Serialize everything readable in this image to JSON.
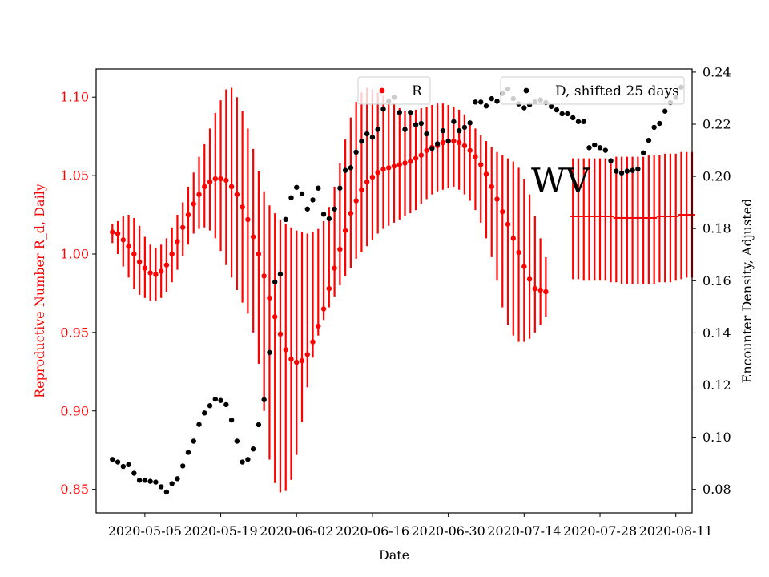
{
  "chart_data": {
    "type": "scatter",
    "title": "",
    "annotation": "WV",
    "xlabel": "Date",
    "ylabel_left": "Reproductive Number R_d, Daily",
    "ylabel_right": "Encounter Density, Adjusted",
    "x_ticks": [
      "2020-05-05",
      "2020-05-19",
      "2020-06-02",
      "2020-06-16",
      "2020-06-30",
      "2020-07-14",
      "2020-07-28",
      "2020-08-11"
    ],
    "x_range": [
      "2020-04-26",
      "2020-08-14"
    ],
    "y_left": {
      "ticks": [
        "0.85",
        "0.90",
        "0.95",
        "1.00",
        "1.05",
        "1.10"
      ],
      "range": [
        0.835,
        1.118
      ]
    },
    "y_right": {
      "ticks": [
        "0.08",
        "0.10",
        "0.12",
        "0.14",
        "0.16",
        "0.18",
        "0.20",
        "0.22",
        "0.24"
      ],
      "range": [
        0.071,
        0.2412
      ]
    },
    "colors": {
      "R": "#ff0000",
      "D": "#000000",
      "left_axis": "#ff0000",
      "right_axis": "#000000"
    },
    "legend": [
      {
        "label": "R",
        "placement": "upper-center"
      },
      {
        "label": "D, shifted 25 days",
        "placement": "upper-right"
      }
    ],
    "series": [
      {
        "name": "R",
        "axis": "left",
        "start_date": "2020-04-29",
        "values": [
          1.014,
          1.013,
          1.009,
          1.005,
          1.0,
          0.995,
          0.991,
          0.988,
          0.987,
          0.989,
          0.993,
          1.0,
          1.008,
          1.017,
          1.025,
          1.032,
          1.038,
          1.043,
          1.046,
          1.048,
          1.048,
          1.047,
          1.043,
          1.038,
          1.03,
          1.022,
          1.011,
          1.0,
          0.986,
          0.972,
          0.96,
          0.949,
          0.939,
          0.933,
          0.931,
          0.932,
          0.936,
          0.944,
          0.954,
          0.965,
          0.978,
          0.991,
          1.003,
          1.015,
          1.026,
          1.034,
          1.041,
          1.046,
          1.049,
          1.052,
          1.054,
          1.055,
          1.056,
          1.057,
          1.058,
          1.059,
          1.061,
          1.063,
          1.066,
          1.068,
          1.069,
          1.071,
          1.072,
          1.072,
          1.071,
          1.069,
          1.066,
          1.062,
          1.057,
          1.051,
          1.043,
          1.035,
          1.027,
          1.019,
          1.01,
          1.001,
          0.992,
          0.984,
          0.978,
          0.977,
          0.976
        ],
        "lower": [
          1.007,
          1.0,
          0.992,
          0.985,
          0.978,
          0.974,
          0.972,
          0.97,
          0.97,
          0.972,
          0.976,
          0.982,
          0.99,
          0.999,
          1.006,
          1.013,
          1.016,
          1.017,
          1.015,
          1.01,
          1.002,
          0.993,
          0.985,
          0.977,
          0.969,
          0.962,
          0.95,
          0.93,
          0.9,
          0.869,
          0.854,
          0.848,
          0.849,
          0.856,
          0.872,
          0.893,
          0.915,
          0.934,
          0.948,
          0.958,
          0.966,
          0.973,
          0.98,
          0.986,
          0.991,
          0.997,
          1.001,
          1.005,
          1.009,
          1.013,
          1.016,
          1.018,
          1.02,
          1.022,
          1.024,
          1.026,
          1.028,
          1.032,
          1.035,
          1.038,
          1.04,
          1.041,
          1.042,
          1.043,
          1.041,
          1.038,
          1.034,
          1.028,
          1.02,
          1.01,
          0.998,
          0.983,
          0.966,
          0.955,
          0.948,
          0.944,
          0.944,
          0.946,
          0.95,
          0.955,
          0.96
        ],
        "upper": [
          1.019,
          1.021,
          1.024,
          1.025,
          1.023,
          1.018,
          1.011,
          1.006,
          1.004,
          1.006,
          1.01,
          1.017,
          1.025,
          1.033,
          1.043,
          1.052,
          1.062,
          1.07,
          1.08,
          1.09,
          1.098,
          1.105,
          1.106,
          1.1,
          1.091,
          1.08,
          1.067,
          1.053,
          1.04,
          1.031,
          1.026,
          1.022,
          1.019,
          1.017,
          1.015,
          1.014,
          1.013,
          1.014,
          1.016,
          1.021,
          1.03,
          1.043,
          1.058,
          1.073,
          1.087,
          1.097,
          1.103,
          1.106,
          1.105,
          1.103,
          1.101,
          1.099,
          1.096,
          1.093,
          1.091,
          1.091,
          1.092,
          1.093,
          1.094,
          1.095,
          1.096,
          1.096,
          1.095,
          1.094,
          1.092,
          1.089,
          1.085,
          1.08,
          1.076,
          1.072,
          1.068,
          1.065,
          1.063,
          1.061,
          1.059,
          1.055,
          1.048,
          1.038,
          1.024,
          1.01,
          0.998
        ]
      },
      {
        "name": "R",
        "axis": "left",
        "start_date": "2020-07-23",
        "values": [
          1.024,
          1.024,
          1.024,
          1.024,
          1.024,
          1.024,
          1.024,
          1.024,
          1.023,
          1.023,
          1.023,
          1.023,
          1.023,
          1.023,
          1.023,
          1.023,
          1.024,
          1.024,
          1.024,
          1.024,
          1.025,
          1.025,
          1.025
        ],
        "lower": [
          0.984,
          0.984,
          0.983,
          0.983,
          0.983,
          0.983,
          0.983,
          0.982,
          0.982,
          0.981,
          0.981,
          0.981,
          0.981,
          0.981,
          0.981,
          0.981,
          0.982,
          0.982,
          0.982,
          0.983,
          0.984,
          0.985,
          0.985
        ],
        "upper": [
          1.061,
          1.061,
          1.061,
          1.061,
          1.061,
          1.061,
          1.061,
          1.061,
          1.062,
          1.062,
          1.062,
          1.062,
          1.062,
          1.062,
          1.063,
          1.063,
          1.063,
          1.064,
          1.064,
          1.064,
          1.065,
          1.065,
          1.065
        ]
      },
      {
        "name": "D, shifted 25 days",
        "axis": "right",
        "points": [
          [
            "2020-04-29",
            0.0915
          ],
          [
            "2020-04-30",
            0.0905
          ],
          [
            "2020-05-01",
            0.0888
          ],
          [
            "2020-05-02",
            0.0895
          ],
          [
            "2020-05-03",
            0.0862
          ],
          [
            "2020-05-04",
            0.0835
          ],
          [
            "2020-05-05",
            0.0835
          ],
          [
            "2020-05-06",
            0.0831
          ],
          [
            "2020-05-07",
            0.0828
          ],
          [
            "2020-05-08",
            0.081
          ],
          [
            "2020-05-09",
            0.079
          ],
          [
            "2020-05-10",
            0.0822
          ],
          [
            "2020-05-11",
            0.0841
          ],
          [
            "2020-05-12",
            0.089
          ],
          [
            "2020-05-13",
            0.0942
          ],
          [
            "2020-05-14",
            0.0985
          ],
          [
            "2020-05-15",
            0.1049
          ],
          [
            "2020-05-16",
            0.1093
          ],
          [
            "2020-05-17",
            0.1121
          ],
          [
            "2020-05-18",
            0.1146
          ],
          [
            "2020-05-19",
            0.1141
          ],
          [
            "2020-05-20",
            0.1125
          ],
          [
            "2020-05-21",
            0.1066
          ],
          [
            "2020-05-22",
            0.0985
          ],
          [
            "2020-05-23",
            0.0905
          ],
          [
            "2020-05-24",
            0.0915
          ],
          [
            "2020-05-25",
            0.0955
          ],
          [
            "2020-05-26",
            0.1048
          ],
          [
            "2020-05-27",
            0.1144
          ],
          [
            "2020-05-28",
            0.1325
          ],
          [
            "2020-05-29",
            0.1595
          ],
          [
            "2020-05-30",
            0.1625
          ],
          [
            "2020-05-31",
            0.1835
          ],
          [
            "2020-06-01",
            0.1918
          ],
          [
            "2020-06-02",
            0.1958
          ],
          [
            "2020-06-03",
            0.1933
          ],
          [
            "2020-06-04",
            0.1875
          ],
          [
            "2020-06-05",
            0.191
          ],
          [
            "2020-06-06",
            0.1955
          ],
          [
            "2020-06-07",
            0.1855
          ],
          [
            "2020-06-08",
            0.1838
          ],
          [
            "2020-06-09",
            0.1875
          ],
          [
            "2020-06-10",
            0.1955
          ],
          [
            "2020-06-11",
            0.2023
          ],
          [
            "2020-06-12",
            0.2033
          ],
          [
            "2020-06-13",
            0.2093
          ],
          [
            "2020-06-14",
            0.2135
          ],
          [
            "2020-06-15",
            0.2163
          ],
          [
            "2020-06-16",
            0.215
          ],
          [
            "2020-06-17",
            0.218
          ],
          [
            "2020-06-18",
            0.2258
          ],
          [
            "2020-06-19",
            0.2288
          ],
          [
            "2020-06-20",
            0.2303
          ],
          [
            "2020-06-21",
            0.2245
          ],
          [
            "2020-06-22",
            0.218
          ],
          [
            "2020-06-23",
            0.2245
          ],
          [
            "2020-06-24",
            0.2198
          ],
          [
            "2020-06-25",
            0.2203
          ],
          [
            "2020-06-26",
            0.2163
          ],
          [
            "2020-06-27",
            0.2107
          ],
          [
            "2020-06-28",
            0.2125
          ],
          [
            "2020-06-29",
            0.2175
          ],
          [
            "2020-06-30",
            0.2135
          ],
          [
            "2020-07-01",
            0.221
          ],
          [
            "2020-07-02",
            0.2175
          ],
          [
            "2020-07-03",
            0.2188
          ],
          [
            "2020-07-04",
            0.2205
          ],
          [
            "2020-07-05",
            0.2285
          ],
          [
            "2020-07-06",
            0.2285
          ],
          [
            "2020-07-07",
            0.227
          ],
          [
            "2020-07-08",
            0.2298
          ],
          [
            "2020-07-09",
            0.2288
          ],
          [
            "2020-07-10",
            0.2318
          ],
          [
            "2020-07-11",
            0.2335
          ],
          [
            "2020-07-12",
            0.2298
          ],
          [
            "2020-07-13",
            0.2278
          ],
          [
            "2020-07-14",
            0.2263
          ],
          [
            "2020-07-15",
            0.2275
          ],
          [
            "2020-07-16",
            0.2285
          ],
          [
            "2020-07-17",
            0.2293
          ],
          [
            "2020-07-18",
            0.2283
          ],
          [
            "2020-07-19",
            0.2268
          ],
          [
            "2020-07-20",
            0.2255
          ],
          [
            "2020-07-21",
            0.224
          ],
          [
            "2020-07-22",
            0.224
          ],
          [
            "2020-07-23",
            0.2225
          ],
          [
            "2020-07-24",
            0.221
          ],
          [
            "2020-07-25",
            0.221
          ],
          [
            "2020-07-26",
            0.211
          ],
          [
            "2020-07-27",
            0.212
          ],
          [
            "2020-07-28",
            0.211
          ],
          [
            "2020-07-29",
            0.21
          ],
          [
            "2020-07-30",
            0.206
          ],
          [
            "2020-07-31",
            0.202
          ],
          [
            "2020-08-01",
            0.2013
          ],
          [
            "2020-08-02",
            0.202
          ],
          [
            "2020-08-03",
            0.2023
          ],
          [
            "2020-08-04",
            0.2028
          ],
          [
            "2020-08-05",
            0.209
          ],
          [
            "2020-08-06",
            0.2138
          ],
          [
            "2020-08-07",
            0.2188
          ],
          [
            "2020-08-08",
            0.2203
          ],
          [
            "2020-08-09",
            0.225
          ],
          [
            "2020-08-10",
            0.2283
          ],
          [
            "2020-08-11",
            0.2303
          ],
          [
            "2020-08-12",
            0.2342
          ]
        ]
      }
    ]
  }
}
